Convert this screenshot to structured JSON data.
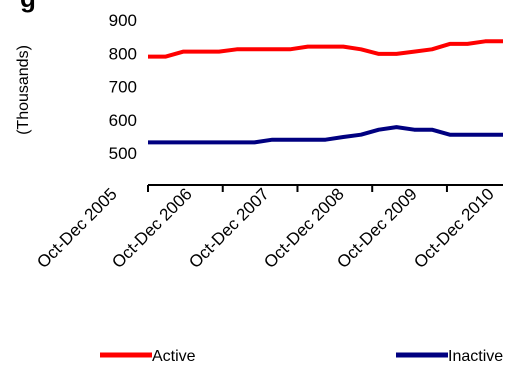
{
  "chart_data": {
    "type": "line",
    "title_fragment": "g",
    "ylabel": "(Thousands)",
    "ylim": [
      500,
      900
    ],
    "yticks": [
      500,
      600,
      700,
      800,
      900
    ],
    "x_tick_labels": [
      "Oct-Dec 2005",
      "Oct-Dec 2006",
      "Oct-Dec 2007",
      "Oct-Dec 2008",
      "Oct-Dec 2009",
      "Oct-Dec 2010"
    ],
    "series": [
      {
        "name": "Active",
        "color": "#ff0000",
        "values": [
          790,
          790,
          805,
          805,
          805,
          812,
          812,
          812,
          812,
          820,
          820,
          820,
          812,
          798,
          798,
          805,
          812,
          828,
          828,
          836,
          836
        ]
      },
      {
        "name": "Inactive",
        "color": "#000080",
        "values": [
          532,
          532,
          532,
          532,
          532,
          532,
          532,
          540,
          540,
          540,
          540,
          548,
          555,
          570,
          578,
          570,
          570,
          555,
          555,
          555,
          555
        ]
      }
    ],
    "legend_position": "bottom"
  }
}
